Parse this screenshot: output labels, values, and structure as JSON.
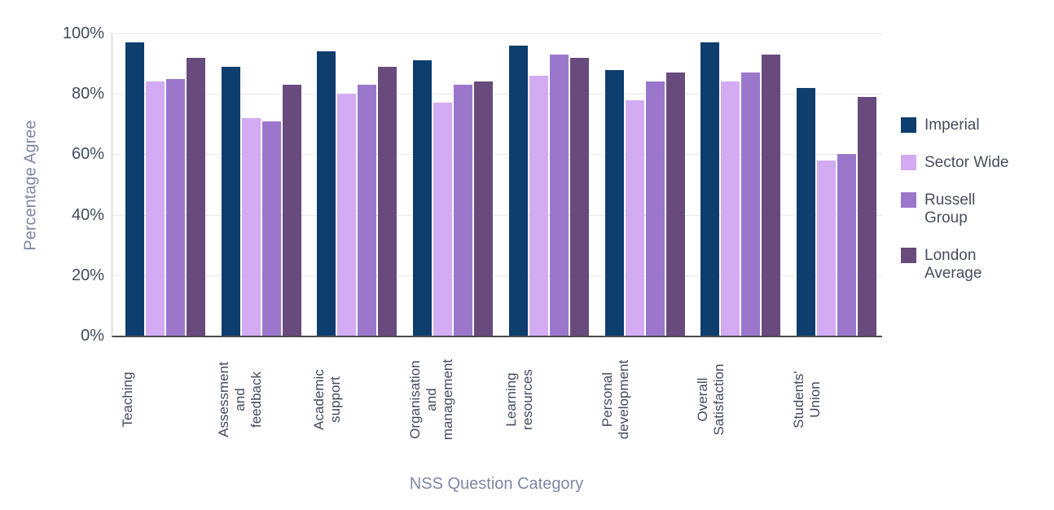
{
  "chart_data": {
    "type": "bar",
    "xlabel": "NSS Question Category",
    "ylabel": "Percentage Agree",
    "categories": [
      "Teaching",
      "Assessment and feedback",
      "Academic support",
      "Organisation and management",
      "Learning resources",
      "Personal development",
      "Overall Satisfaction",
      "Students' Union"
    ],
    "category_labels": [
      "Teaching",
      "Assessment\nand\nfeedback",
      "Academic\nsupport",
      "Organisation\nand\nmanagement",
      "Learning\nresources",
      "Personal\ndevelopment",
      "Overall\nSatisfaction",
      "Students'\nUnion"
    ],
    "series": [
      {
        "name": "Imperial",
        "color": "#0d3e6e",
        "values": [
          97,
          89,
          94,
          91,
          96,
          88,
          97,
          82
        ]
      },
      {
        "name": "Sector Wide",
        "color": "#d2abf2",
        "values": [
          84,
          72,
          80,
          77,
          86,
          78,
          84,
          58
        ]
      },
      {
        "name": "Russell Group",
        "color": "#9b77cb",
        "values": [
          85,
          71,
          83,
          83,
          93,
          84,
          87,
          60
        ]
      },
      {
        "name": "London Average",
        "color": "#684b7c",
        "values": [
          92,
          83,
          89,
          84,
          92,
          87,
          93,
          79
        ]
      }
    ],
    "y_ticks": [
      "0%",
      "20%",
      "40%",
      "60%",
      "80%",
      "100%"
    ],
    "ylim": [
      0,
      100
    ],
    "grid": true,
    "legend_position": "right",
    "style": {
      "tick_text_color": "#414b5c",
      "axis_title_color": "#7e88a5",
      "legend_text_color": "#474e5d",
      "gridline_color": "#e9e9ec",
      "x_axis_line_color": "#4d4d4d",
      "y_axis_line_color": "#c9c9c9",
      "background": "#ffffff"
    }
  }
}
